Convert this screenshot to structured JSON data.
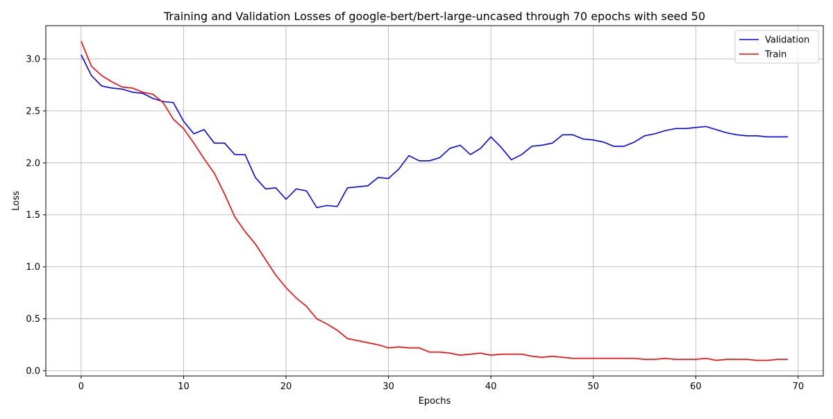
{
  "chart_data": {
    "type": "line",
    "title": "Training and Validation Losses of google-bert/bert-large-uncased through 70 epochs with seed 50",
    "xlabel": "Epochs",
    "ylabel": "Loss",
    "xlim": [
      -3.45,
      72.45
    ],
    "ylim": [
      -0.05,
      3.32
    ],
    "xticks": [
      0,
      10,
      20,
      30,
      40,
      50,
      60,
      70
    ],
    "yticks": [
      0.0,
      0.5,
      1.0,
      1.5,
      2.0,
      2.5,
      3.0
    ],
    "xtick_labels": [
      "0",
      "10",
      "20",
      "30",
      "40",
      "50",
      "60",
      "70"
    ],
    "ytick_labels": [
      "0.0",
      "0.5",
      "1.0",
      "1.5",
      "2.0",
      "2.5",
      "3.0"
    ],
    "grid": true,
    "legend_position": "top-right",
    "x": [
      0,
      1,
      2,
      3,
      4,
      5,
      6,
      7,
      8,
      9,
      10,
      11,
      12,
      13,
      14,
      15,
      16,
      17,
      18,
      19,
      20,
      21,
      22,
      23,
      24,
      25,
      26,
      27,
      28,
      29,
      30,
      31,
      32,
      33,
      34,
      35,
      36,
      37,
      38,
      39,
      40,
      41,
      42,
      43,
      44,
      45,
      46,
      47,
      48,
      49,
      50,
      51,
      52,
      53,
      54,
      55,
      56,
      57,
      58,
      59,
      60,
      61,
      62,
      63,
      64,
      65,
      66,
      67,
      68,
      69
    ],
    "series": [
      {
        "name": "Validation",
        "color": "#0000ff",
        "values": [
          3.04,
          2.84,
          2.74,
          2.72,
          2.71,
          2.68,
          2.67,
          2.62,
          2.59,
          2.58,
          2.4,
          2.28,
          2.32,
          2.19,
          2.19,
          2.08,
          2.08,
          1.86,
          1.75,
          1.76,
          1.65,
          1.75,
          1.73,
          1.57,
          1.59,
          1.58,
          1.76,
          1.77,
          1.78,
          1.86,
          1.85,
          1.94,
          2.07,
          2.02,
          2.02,
          2.05,
          2.14,
          2.17,
          2.08,
          2.14,
          2.25,
          2.15,
          2.03,
          2.08,
          2.16,
          2.17,
          2.19,
          2.27,
          2.27,
          2.23,
          2.22,
          2.2,
          2.16,
          2.16,
          2.2,
          2.26,
          2.28,
          2.31,
          2.33,
          2.33,
          2.34,
          2.35,
          2.32,
          2.29,
          2.27,
          2.26,
          2.26,
          2.25,
          2.25,
          2.25
        ]
      },
      {
        "name": "Train",
        "color": "#ff0000",
        "values": [
          3.17,
          2.93,
          2.84,
          2.78,
          2.73,
          2.72,
          2.68,
          2.66,
          2.58,
          2.42,
          2.33,
          2.19,
          2.04,
          1.9,
          1.7,
          1.48,
          1.34,
          1.22,
          1.07,
          0.92,
          0.8,
          0.7,
          0.62,
          0.5,
          0.45,
          0.39,
          0.31,
          0.29,
          0.27,
          0.25,
          0.22,
          0.23,
          0.22,
          0.22,
          0.18,
          0.18,
          0.17,
          0.15,
          0.16,
          0.17,
          0.15,
          0.16,
          0.16,
          0.16,
          0.14,
          0.13,
          0.14,
          0.13,
          0.12,
          0.12,
          0.12,
          0.12,
          0.12,
          0.12,
          0.12,
          0.11,
          0.11,
          0.12,
          0.11,
          0.11,
          0.11,
          0.12,
          0.1,
          0.11,
          0.11,
          0.11,
          0.1,
          0.1,
          0.11,
          0.11
        ]
      }
    ]
  }
}
